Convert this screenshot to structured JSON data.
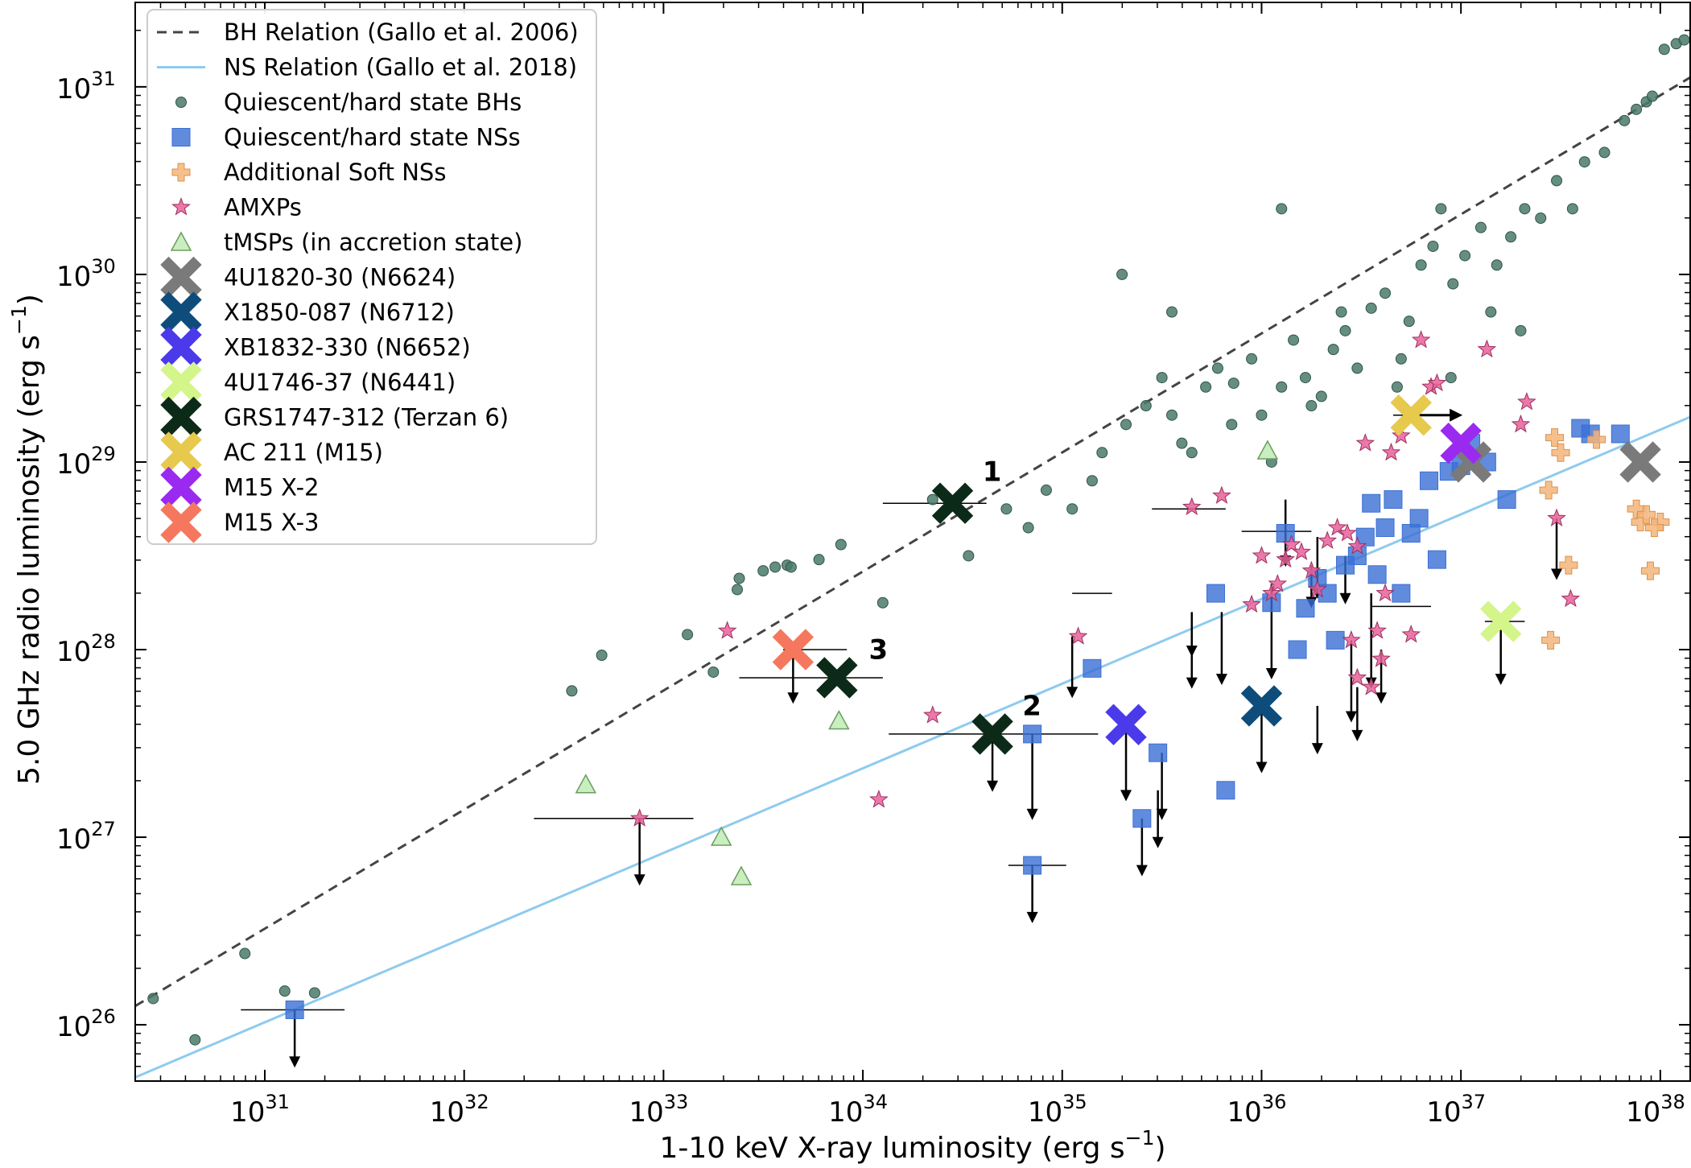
{
  "chart_data": {
    "type": "scatter",
    "xlabel": "1-10 keV X-ray luminosity (erg s",
    "ylabel": "5.0 GHz radio luminosity (erg s",
    "unit_superscript": "−1",
    "unit_close": ")",
    "x_scale": "log",
    "y_scale": "log",
    "xlim_log10": [
      30.35,
      38.15
    ],
    "ylim_log10": [
      25.7,
      31.45
    ],
    "x_ticks": [
      {
        "exp": 31,
        "base": "10",
        "sup": "31"
      },
      {
        "exp": 32,
        "base": "10",
        "sup": "32"
      },
      {
        "exp": 33,
        "base": "10",
        "sup": "33"
      },
      {
        "exp": 34,
        "base": "10",
        "sup": "34"
      },
      {
        "exp": 35,
        "base": "10",
        "sup": "35"
      },
      {
        "exp": 36,
        "base": "10",
        "sup": "36"
      },
      {
        "exp": 37,
        "base": "10",
        "sup": "37"
      },
      {
        "exp": 38,
        "base": "10",
        "sup": "38"
      }
    ],
    "y_ticks": [
      {
        "exp": 26,
        "base": "10",
        "sup": "26"
      },
      {
        "exp": 27,
        "base": "10",
        "sup": "27"
      },
      {
        "exp": 28,
        "base": "10",
        "sup": "28"
      },
      {
        "exp": 29,
        "base": "10",
        "sup": "29"
      },
      {
        "exp": 30,
        "base": "10",
        "sup": "30"
      },
      {
        "exp": 31,
        "base": "10",
        "sup": "31"
      }
    ],
    "grid": false,
    "legend_position": "top-left",
    "lines": [
      {
        "name": "BH Relation (Gallo et al. 2006)",
        "color": "#444444",
        "dash": true,
        "x_log10": [
          30.35,
          38.15
        ],
        "y_log10": [
          26.1,
          31.05
        ]
      },
      {
        "name": "NS Relation (Gallo et al. 2018)",
        "color": "#8ecbef",
        "dash": false,
        "x_log10": [
          30.35,
          38.15
        ],
        "y_log10": [
          25.72,
          29.24
        ]
      }
    ],
    "series": [
      {
        "name": "Quiescent/hard state BHs",
        "marker": "circle",
        "color": "#4a7a6b",
        "points": [
          [
            30.44,
            26.14
          ],
          [
            30.65,
            25.92
          ],
          [
            30.9,
            26.38
          ],
          [
            31.1,
            26.18
          ],
          [
            31.25,
            26.17
          ],
          [
            32.54,
            27.78
          ],
          [
            32.69,
            27.97
          ],
          [
            33.12,
            28.08
          ],
          [
            33.25,
            27.88
          ],
          [
            33.37,
            28.32
          ],
          [
            33.38,
            28.38
          ],
          [
            33.5,
            28.42
          ],
          [
            33.56,
            28.44
          ],
          [
            33.62,
            28.45
          ],
          [
            33.64,
            28.44
          ],
          [
            33.78,
            28.48
          ],
          [
            33.89,
            28.56
          ],
          [
            34.1,
            28.25
          ],
          [
            34.35,
            28.8
          ],
          [
            34.53,
            28.5
          ],
          [
            34.72,
            28.75
          ],
          [
            34.83,
            28.65
          ],
          [
            34.92,
            28.85
          ],
          [
            35.05,
            28.75
          ],
          [
            35.15,
            28.9
          ],
          [
            35.2,
            29.05
          ],
          [
            35.32,
            29.2
          ],
          [
            35.42,
            29.3
          ],
          [
            35.5,
            29.45
          ],
          [
            35.55,
            29.25
          ],
          [
            35.6,
            29.1
          ],
          [
            35.65,
            29.05
          ],
          [
            35.72,
            29.4
          ],
          [
            35.78,
            29.5
          ],
          [
            35.86,
            29.42
          ],
          [
            35.95,
            29.55
          ],
          [
            36.0,
            29.25
          ],
          [
            36.05,
            29.0
          ],
          [
            36.1,
            29.4
          ],
          [
            36.16,
            29.65
          ],
          [
            36.22,
            29.45
          ],
          [
            36.3,
            29.35
          ],
          [
            36.36,
            29.6
          ],
          [
            36.42,
            29.7
          ],
          [
            36.48,
            29.5
          ],
          [
            36.55,
            29.82
          ],
          [
            36.62,
            29.9
          ],
          [
            36.68,
            29.4
          ],
          [
            36.74,
            29.75
          ],
          [
            36.8,
            30.05
          ],
          [
            36.86,
            30.15
          ],
          [
            36.9,
            30.35
          ],
          [
            36.96,
            29.95
          ],
          [
            37.02,
            30.1
          ],
          [
            37.1,
            30.25
          ],
          [
            37.18,
            30.05
          ],
          [
            37.25,
            30.2
          ],
          [
            37.32,
            30.35
          ],
          [
            37.4,
            30.3
          ],
          [
            37.48,
            30.5
          ],
          [
            37.56,
            30.35
          ],
          [
            37.62,
            30.6
          ],
          [
            37.72,
            30.65
          ],
          [
            37.82,
            30.82
          ],
          [
            37.88,
            30.88
          ],
          [
            37.93,
            30.92
          ],
          [
            37.96,
            30.95
          ],
          [
            38.02,
            31.2
          ],
          [
            38.08,
            31.23
          ],
          [
            38.12,
            31.25
          ],
          [
            36.1,
            30.35
          ],
          [
            35.3,
            30.0
          ],
          [
            35.55,
            29.8
          ],
          [
            36.7,
            29.55
          ],
          [
            37.15,
            29.8
          ],
          [
            36.25,
            29.3
          ],
          [
            35.85,
            29.2
          ],
          [
            36.4,
            29.8
          ],
          [
            37.3,
            29.7
          ],
          [
            36.95,
            29.45
          ]
        ]
      },
      {
        "name": "Quiescent/hard state NSs",
        "marker": "square",
        "color": "#3a6fd4",
        "points": [
          [
            31.15,
            26.08
          ],
          [
            34.85,
            27.55
          ],
          [
            34.85,
            26.85
          ],
          [
            35.15,
            27.9
          ],
          [
            35.4,
            27.1
          ],
          [
            35.48,
            27.45
          ],
          [
            35.82,
            27.25
          ],
          [
            35.77,
            28.3
          ],
          [
            36.05,
            28.25
          ],
          [
            36.12,
            28.62
          ],
          [
            36.18,
            28.0
          ],
          [
            36.22,
            28.22
          ],
          [
            36.28,
            28.38
          ],
          [
            36.33,
            28.3
          ],
          [
            36.37,
            28.05
          ],
          [
            36.42,
            28.45
          ],
          [
            36.48,
            28.5
          ],
          [
            36.52,
            28.6
          ],
          [
            36.55,
            28.78
          ],
          [
            36.58,
            28.4
          ],
          [
            36.62,
            28.65
          ],
          [
            36.66,
            28.8
          ],
          [
            36.7,
            28.3
          ],
          [
            36.75,
            28.62
          ],
          [
            36.79,
            28.7
          ],
          [
            36.84,
            28.9
          ],
          [
            36.88,
            28.48
          ],
          [
            36.94,
            28.95
          ],
          [
            37.0,
            28.98
          ],
          [
            37.05,
            29.1
          ],
          [
            37.13,
            29.0
          ],
          [
            37.23,
            28.8
          ],
          [
            37.6,
            29.18
          ],
          [
            37.65,
            29.15
          ],
          [
            37.8,
            29.15
          ]
        ]
      },
      {
        "name": "Additional Soft NSs",
        "marker": "plus",
        "color": "#f4b57a",
        "points": [
          [
            37.47,
            29.13
          ],
          [
            37.5,
            29.05
          ],
          [
            37.54,
            28.45
          ],
          [
            37.68,
            29.12
          ],
          [
            37.88,
            28.75
          ],
          [
            37.9,
            28.68
          ],
          [
            37.93,
            28.72
          ],
          [
            37.95,
            28.42
          ],
          [
            38.0,
            28.68
          ],
          [
            37.97,
            28.65
          ],
          [
            37.45,
            28.05
          ],
          [
            37.44,
            28.85
          ]
        ]
      },
      {
        "name": "AMXPs",
        "marker": "star",
        "color": "#e8609a",
        "points": [
          [
            32.88,
            27.1
          ],
          [
            33.32,
            28.1
          ],
          [
            34.08,
            27.2
          ],
          [
            34.35,
            27.65
          ],
          [
            35.08,
            28.07
          ],
          [
            35.65,
            28.76
          ],
          [
            35.8,
            28.82
          ],
          [
            35.95,
            28.24
          ],
          [
            36.0,
            28.5
          ],
          [
            36.05,
            28.3
          ],
          [
            36.08,
            28.35
          ],
          [
            36.12,
            28.48
          ],
          [
            36.15,
            28.56
          ],
          [
            36.2,
            28.52
          ],
          [
            36.25,
            28.42
          ],
          [
            36.28,
            28.32
          ],
          [
            36.33,
            28.58
          ],
          [
            36.38,
            28.65
          ],
          [
            36.43,
            28.62
          ],
          [
            36.45,
            28.05
          ],
          [
            36.48,
            27.85
          ],
          [
            36.55,
            27.8
          ],
          [
            36.6,
            27.95
          ],
          [
            36.62,
            28.3
          ],
          [
            36.65,
            29.05
          ],
          [
            36.7,
            29.14
          ],
          [
            36.75,
            28.08
          ],
          [
            36.8,
            29.65
          ],
          [
            36.85,
            29.4
          ],
          [
            36.88,
            29.42
          ],
          [
            37.13,
            29.6
          ],
          [
            37.3,
            29.2
          ],
          [
            37.33,
            29.32
          ],
          [
            37.48,
            28.7
          ],
          [
            37.55,
            28.27
          ],
          [
            36.52,
            29.1
          ],
          [
            36.58,
            28.1
          ],
          [
            36.48,
            28.55
          ]
        ]
      },
      {
        "name": "tMSPs (in accretion state)",
        "marker": "triangle",
        "color": "#c9eec0",
        "points": [
          [
            32.61,
            27.28
          ],
          [
            33.29,
            27.0
          ],
          [
            33.39,
            26.79
          ],
          [
            33.88,
            27.62
          ],
          [
            36.03,
            29.06
          ]
        ]
      },
      {
        "name": "4U1820-30 (N6624)",
        "marker": "bigx",
        "color": "#7a7a7a",
        "points": [
          [
            37.05,
            29.0
          ],
          [
            37.9,
            29.0
          ]
        ]
      },
      {
        "name": "X1850-087 (N6712)",
        "marker": "bigx",
        "color": "#0e4d7b",
        "points": [
          [
            36.0,
            27.7
          ]
        ]
      },
      {
        "name": "XB1832-330 (N6652)",
        "marker": "bigx",
        "color": "#4a3aea",
        "points": [
          [
            35.32,
            27.6
          ]
        ]
      },
      {
        "name": "4U1746-37 (N6441)",
        "marker": "bigx",
        "color": "#d3f58a",
        "points": [
          [
            37.2,
            28.15
          ]
        ]
      },
      {
        "name": "GRS1747-312 (Terzan 6)",
        "marker": "bigx",
        "color": "#0c2a18",
        "points": [
          [
            34.45,
            28.78
          ],
          [
            34.65,
            27.55
          ],
          [
            33.87,
            27.85
          ]
        ]
      },
      {
        "name": "AC 211  (M15)",
        "marker": "bigx",
        "color": "#e6c94d",
        "points": [
          [
            36.75,
            29.25
          ]
        ]
      },
      {
        "name": "M15 X-2",
        "marker": "bigx",
        "color": "#9b2af0",
        "points": [
          [
            37.0,
            29.1
          ]
        ]
      },
      {
        "name": "M15 X-3",
        "marker": "bigx",
        "color": "#f5785e",
        "points": [
          [
            33.65,
            28.0
          ]
        ]
      }
    ],
    "upper_limits": [
      [
        31.15,
        26.08,
        25.78
      ],
      [
        32.88,
        27.1,
        26.75
      ],
      [
        33.65,
        28.0,
        27.72
      ],
      [
        34.65,
        27.55,
        27.25
      ],
      [
        34.85,
        27.55,
        27.1
      ],
      [
        34.85,
        26.85,
        26.55
      ],
      [
        35.05,
        28.07,
        27.75
      ],
      [
        35.4,
        27.1,
        26.8
      ],
      [
        35.5,
        27.45,
        27.1
      ],
      [
        35.32,
        27.6,
        27.2
      ],
      [
        35.48,
        27.25,
        26.95
      ],
      [
        35.65,
        28.07,
        27.8
      ],
      [
        35.65,
        28.2,
        27.97
      ],
      [
        35.8,
        28.2,
        27.82
      ],
      [
        36.0,
        27.7,
        27.35
      ],
      [
        36.05,
        28.35,
        27.85
      ],
      [
        36.12,
        28.8,
        28.45
      ],
      [
        36.25,
        28.45,
        28.23
      ],
      [
        36.28,
        27.7,
        27.45
      ],
      [
        36.42,
        28.5,
        28.25
      ],
      [
        36.45,
        28.05,
        27.62
      ],
      [
        36.48,
        27.8,
        27.52
      ],
      [
        36.55,
        28.3,
        27.8
      ],
      [
        36.6,
        28.0,
        27.72
      ],
      [
        37.2,
        28.15,
        27.82
      ],
      [
        37.48,
        28.7,
        28.38
      ],
      [
        36.28,
        28.6,
        28.28
      ]
    ],
    "x_errorbars": [
      [
        30.88,
        31.4,
        26.08
      ],
      [
        32.35,
        33.15,
        27.1
      ],
      [
        33.6,
        33.92,
        28.0
      ],
      [
        33.38,
        34.1,
        27.85
      ],
      [
        34.1,
        34.62,
        28.78
      ],
      [
        34.13,
        35.18,
        27.55
      ],
      [
        34.73,
        35.02,
        26.85
      ],
      [
        35.45,
        35.82,
        28.75
      ],
      [
        35.9,
        36.25,
        28.63
      ],
      [
        36.55,
        36.85,
        28.23
      ],
      [
        36.66,
        36.88,
        29.25
      ],
      [
        37.12,
        37.32,
        28.15
      ],
      [
        35.05,
        35.25,
        28.3
      ]
    ],
    "arrow_right": [
      [
        36.75,
        29.25,
        37.0
      ]
    ],
    "annotations": [
      {
        "text": "1",
        "x": 34.6,
        "y": 28.9
      },
      {
        "text": "2",
        "x": 34.8,
        "y": 27.65
      },
      {
        "text": "3",
        "x": 34.03,
        "y": 27.95
      }
    ]
  }
}
